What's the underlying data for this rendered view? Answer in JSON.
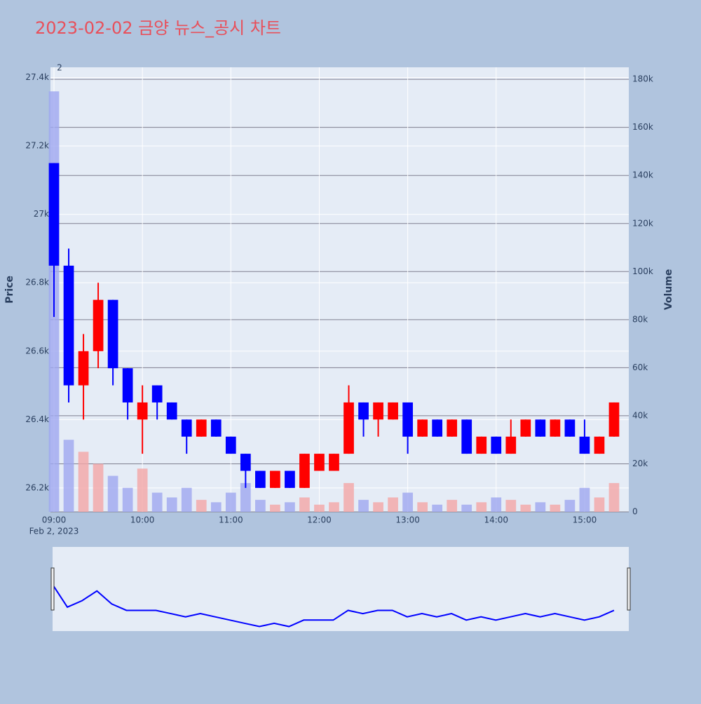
{
  "chart_data": {
    "type": "candlestick",
    "title": "2023-02-02 금양 뉴스_공시 차트",
    "y_label": "Price",
    "y2_label": "Volume",
    "annotation": "2",
    "x_date_label": "Feb 2, 2023",
    "up_color": "#ff0000",
    "down_color": "#0000ff",
    "up_volume_color": "#f4a6a6",
    "down_volume_color": "#9fa8f0",
    "x": [
      "09:00",
      "09:10",
      "09:20",
      "09:30",
      "09:40",
      "09:50",
      "10:00",
      "10:10",
      "10:20",
      "10:30",
      "10:40",
      "10:50",
      "11:00",
      "11:10",
      "11:20",
      "11:30",
      "11:40",
      "11:50",
      "12:00",
      "12:10",
      "12:20",
      "12:30",
      "12:40",
      "12:50",
      "13:00",
      "13:10",
      "13:20",
      "13:30",
      "13:40",
      "13:50",
      "14:00",
      "14:10",
      "14:20",
      "14:30",
      "14:40",
      "14:50",
      "15:00",
      "15:10",
      "15:20"
    ],
    "open": [
      27150,
      26850,
      26500,
      26600,
      26750,
      26550,
      26400,
      26500,
      26450,
      26400,
      26350,
      26400,
      26350,
      26300,
      26250,
      26200,
      26250,
      26200,
      26250,
      26250,
      26300,
      26450,
      26400,
      26400,
      26450,
      26350,
      26400,
      26350,
      26400,
      26300,
      26350,
      26300,
      26350,
      26400,
      26350,
      26400,
      26350,
      26300,
      26350
    ],
    "high": [
      27150,
      26900,
      26650,
      26800,
      26750,
      26550,
      26500,
      26500,
      26450,
      26400,
      26400,
      26400,
      26350,
      26300,
      26250,
      26250,
      26250,
      26300,
      26300,
      26300,
      26500,
      26450,
      26450,
      26450,
      26450,
      26400,
      26400,
      26400,
      26400,
      26350,
      26350,
      26400,
      26400,
      26400,
      26400,
      26400,
      26400,
      26350,
      26450
    ],
    "low": [
      26700,
      26450,
      26400,
      26550,
      26500,
      26400,
      26300,
      26400,
      26400,
      26300,
      26350,
      26350,
      26300,
      26200,
      26200,
      26200,
      26200,
      26200,
      26250,
      26250,
      26300,
      26350,
      26350,
      26400,
      26300,
      26350,
      26350,
      26350,
      26300,
      26300,
      26300,
      26300,
      26350,
      26350,
      26350,
      26350,
      26300,
      26300,
      26350
    ],
    "close": [
      26850,
      26500,
      26600,
      26750,
      26550,
      26450,
      26450,
      26450,
      26400,
      26350,
      26400,
      26350,
      26300,
      26250,
      26200,
      26250,
      26200,
      26300,
      26300,
      26300,
      26450,
      26400,
      26450,
      26450,
      26350,
      26400,
      26350,
      26400,
      26300,
      26350,
      26300,
      26350,
      26400,
      26350,
      26400,
      26350,
      26300,
      26350,
      26450
    ],
    "volume": [
      175000,
      30000,
      25000,
      20000,
      15000,
      10000,
      18000,
      8000,
      6000,
      10000,
      5000,
      4000,
      8000,
      12000,
      5000,
      3000,
      4000,
      6000,
      3000,
      4000,
      12000,
      5000,
      4000,
      6000,
      8000,
      4000,
      3000,
      5000,
      3000,
      4000,
      6000,
      5000,
      3000,
      4000,
      3000,
      5000,
      10000,
      6000,
      12000
    ],
    "xlim": [
      "09:00",
      "15:30"
    ],
    "xticks": [
      "09:00",
      "10:00",
      "11:00",
      "12:00",
      "13:00",
      "14:00",
      "15:00"
    ],
    "ylim": [
      26130,
      27430
    ],
    "yticks": [
      {
        "value": 26200,
        "label": "26.2k"
      },
      {
        "value": 26400,
        "label": "26.4k"
      },
      {
        "value": 26600,
        "label": "26.6k"
      },
      {
        "value": 26800,
        "label": "26.8k"
      },
      {
        "value": 27000,
        "label": "27k"
      },
      {
        "value": 27200,
        "label": "27.2k"
      },
      {
        "value": 27400,
        "label": "27.4k"
      }
    ],
    "y2lim": [
      0,
      185000
    ],
    "y2ticks": [
      0,
      {
        "value": 20000,
        "label": "20k"
      },
      {
        "value": 40000,
        "label": "40k"
      },
      {
        "value": 60000,
        "label": "60k"
      },
      {
        "value": 80000,
        "label": "80k"
      },
      {
        "value": 100000,
        "label": "100k"
      },
      {
        "value": 120000,
        "label": "120k"
      },
      {
        "value": 140000,
        "label": "140k"
      },
      {
        "value": 160000,
        "label": "160k"
      },
      {
        "value": 180000,
        "label": "180k"
      }
    ]
  }
}
